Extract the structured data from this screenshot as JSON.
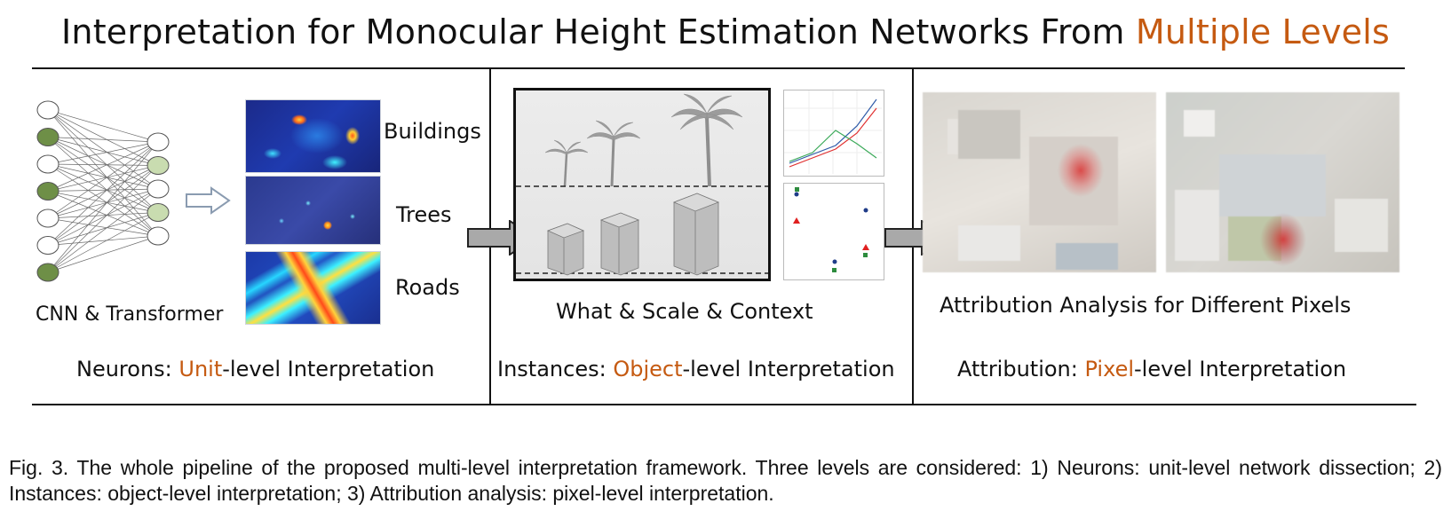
{
  "title": {
    "prefix": "Interpretation for Monocular Height Estimation Networks From ",
    "highlight": "Multiple Levels"
  },
  "panel_unit": {
    "network_label": "CNN & Transformer",
    "categories": [
      "Buildings",
      "Trees",
      "Roads"
    ],
    "bottom": {
      "prefix": "Neurons: ",
      "highlight": "Unit",
      "suffix": "-level Interpretation"
    }
  },
  "panel_object": {
    "factors_label": "What  &  Scale  & Context",
    "bottom": {
      "prefix": "Instances: ",
      "highlight": "Object",
      "suffix": "-level Interpretation"
    }
  },
  "panel_pixel": {
    "analysis_label": "Attribution Analysis for Different Pixels",
    "bottom": {
      "prefix": "Attribution: ",
      "highlight": "Pixel",
      "suffix": "-level Interpretation"
    }
  },
  "caption": "Fig. 3. The whole pipeline of the proposed multi-level interpretation framework. Three levels are considered: 1) Neurons: unit-level network dissection; 2) Instances: object-level interpretation; 3) Attribution analysis: pixel-level interpretation.",
  "colors": {
    "highlight": "#c55a11",
    "neuron_active": "#6e8f47",
    "neuron_light": "#c9dcb0"
  }
}
